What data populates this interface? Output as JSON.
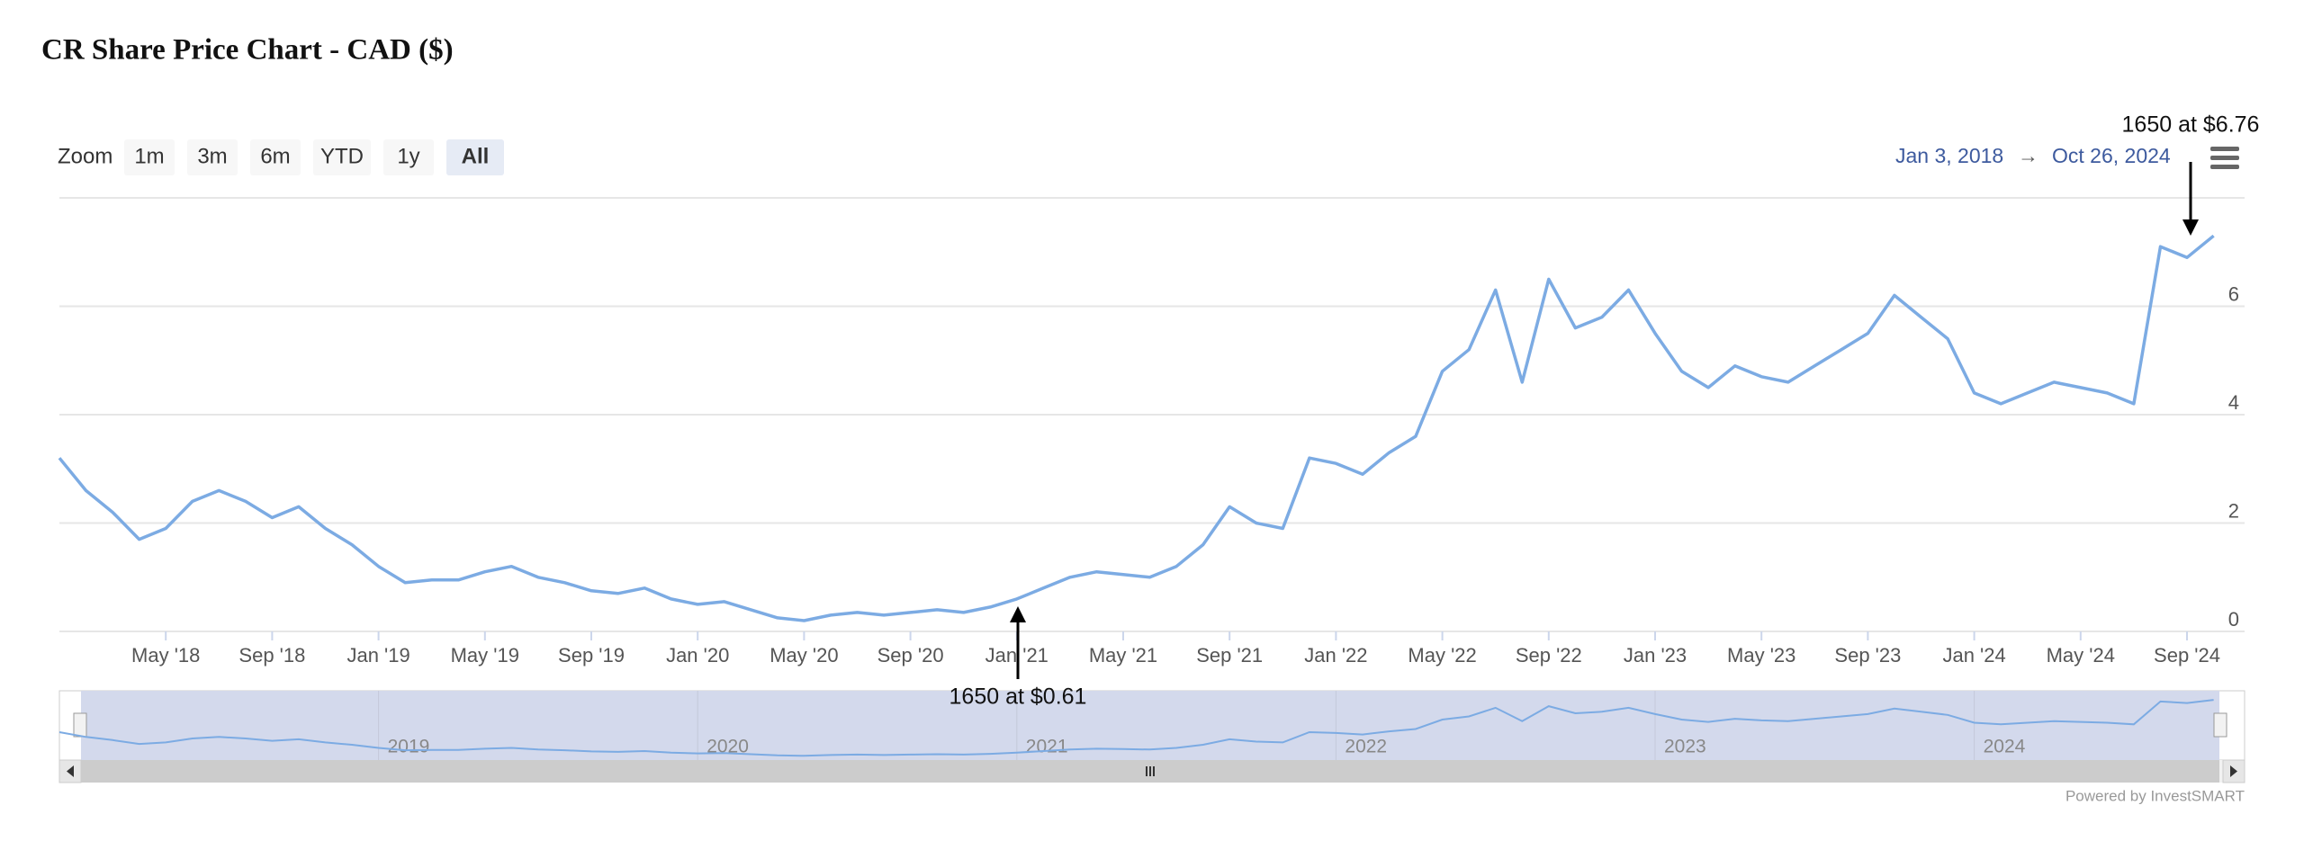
{
  "chart_data": {
    "type": "line",
    "title": "CR Share Price Chart - CAD ($)",
    "zoom_label": "Zoom",
    "zoom_buttons": [
      "1m",
      "3m",
      "6m",
      "YTD",
      "1y",
      "All"
    ],
    "active_zoom": "All",
    "range_from": "Jan 3, 2018",
    "range_arrow": "→",
    "range_to": "Oct 26, 2024",
    "credit": "Powered by InvestSMART",
    "annotations": [
      "1650 at $6.76",
      "1650 at $0.61"
    ],
    "x": [
      "2018-01",
      "2018-02",
      "2018-03",
      "2018-04",
      "2018-05",
      "2018-06",
      "2018-07",
      "2018-08",
      "2018-09",
      "2018-10",
      "2018-11",
      "2018-12",
      "2019-01",
      "2019-02",
      "2019-03",
      "2019-04",
      "2019-05",
      "2019-06",
      "2019-07",
      "2019-08",
      "2019-09",
      "2019-10",
      "2019-11",
      "2019-12",
      "2020-01",
      "2020-02",
      "2020-03",
      "2020-04",
      "2020-05",
      "2020-06",
      "2020-07",
      "2020-08",
      "2020-09",
      "2020-10",
      "2020-11",
      "2020-12",
      "2021-01",
      "2021-02",
      "2021-03",
      "2021-04",
      "2021-05",
      "2021-06",
      "2021-07",
      "2021-08",
      "2021-09",
      "2021-10",
      "2021-11",
      "2021-12",
      "2022-01",
      "2022-02",
      "2022-03",
      "2022-04",
      "2022-05",
      "2022-06",
      "2022-07",
      "2022-08",
      "2022-09",
      "2022-10",
      "2022-11",
      "2022-12",
      "2023-01",
      "2023-02",
      "2023-03",
      "2023-04",
      "2023-05",
      "2023-06",
      "2023-07",
      "2023-08",
      "2023-09",
      "2023-10",
      "2023-11",
      "2023-12",
      "2024-01",
      "2024-02",
      "2024-03",
      "2024-04",
      "2024-05",
      "2024-06",
      "2024-07",
      "2024-08",
      "2024-09",
      "2024-10"
    ],
    "series": [
      {
        "name": "CR",
        "color": "#7cabe3",
        "values": [
          3.2,
          2.6,
          2.2,
          1.7,
          1.9,
          2.4,
          2.6,
          2.4,
          2.1,
          2.3,
          1.9,
          1.6,
          1.2,
          0.9,
          0.95,
          0.95,
          1.1,
          1.2,
          1.0,
          0.9,
          0.75,
          0.7,
          0.8,
          0.6,
          0.5,
          0.55,
          0.4,
          0.25,
          0.2,
          0.3,
          0.35,
          0.3,
          0.35,
          0.4,
          0.35,
          0.45,
          0.6,
          0.8,
          1.0,
          1.1,
          1.05,
          1.0,
          1.2,
          1.6,
          2.3,
          2.0,
          1.9,
          3.2,
          3.1,
          2.9,
          3.3,
          3.6,
          4.8,
          5.2,
          6.3,
          4.6,
          6.5,
          5.6,
          5.8,
          6.3,
          5.5,
          4.8,
          4.5,
          4.9,
          4.7,
          4.6,
          4.9,
          5.2,
          5.5,
          6.2,
          5.8,
          5.4,
          4.4,
          4.2,
          4.4,
          4.6,
          4.5,
          4.4,
          4.2,
          7.1,
          6.9,
          7.3
        ]
      }
    ],
    "ylim": [
      0,
      8
    ],
    "yticks": [
      0,
      2,
      4,
      6
    ],
    "grid": true,
    "xticks": [
      {
        "value": "2018-05",
        "label": "May '18"
      },
      {
        "value": "2018-09",
        "label": "Sep '18"
      },
      {
        "value": "2019-01",
        "label": "Jan '19"
      },
      {
        "value": "2019-05",
        "label": "May '19"
      },
      {
        "value": "2019-09",
        "label": "Sep '19"
      },
      {
        "value": "2020-01",
        "label": "Jan '20"
      },
      {
        "value": "2020-05",
        "label": "May '20"
      },
      {
        "value": "2020-09",
        "label": "Sep '20"
      },
      {
        "value": "2021-01",
        "label": "Jan '21"
      },
      {
        "value": "2021-05",
        "label": "May '21"
      },
      {
        "value": "2021-09",
        "label": "Sep '21"
      },
      {
        "value": "2022-01",
        "label": "Jan '22"
      },
      {
        "value": "2022-05",
        "label": "May '22"
      },
      {
        "value": "2022-09",
        "label": "Sep '22"
      },
      {
        "value": "2023-01",
        "label": "Jan '23"
      },
      {
        "value": "2023-05",
        "label": "May '23"
      },
      {
        "value": "2023-09",
        "label": "Sep '23"
      },
      {
        "value": "2024-01",
        "label": "Jan '24"
      },
      {
        "value": "2024-05",
        "label": "May '24"
      },
      {
        "value": "2024-09",
        "label": "Sep '24"
      }
    ],
    "navigator_ticks": [
      {
        "value": "2019-01",
        "label": "2019"
      },
      {
        "value": "2020-01",
        "label": "2020"
      },
      {
        "value": "2021-01",
        "label": "2021"
      },
      {
        "value": "2022-01",
        "label": "2022"
      },
      {
        "value": "2023-01",
        "label": "2023"
      },
      {
        "value": "2024-01",
        "label": "2024"
      }
    ]
  }
}
